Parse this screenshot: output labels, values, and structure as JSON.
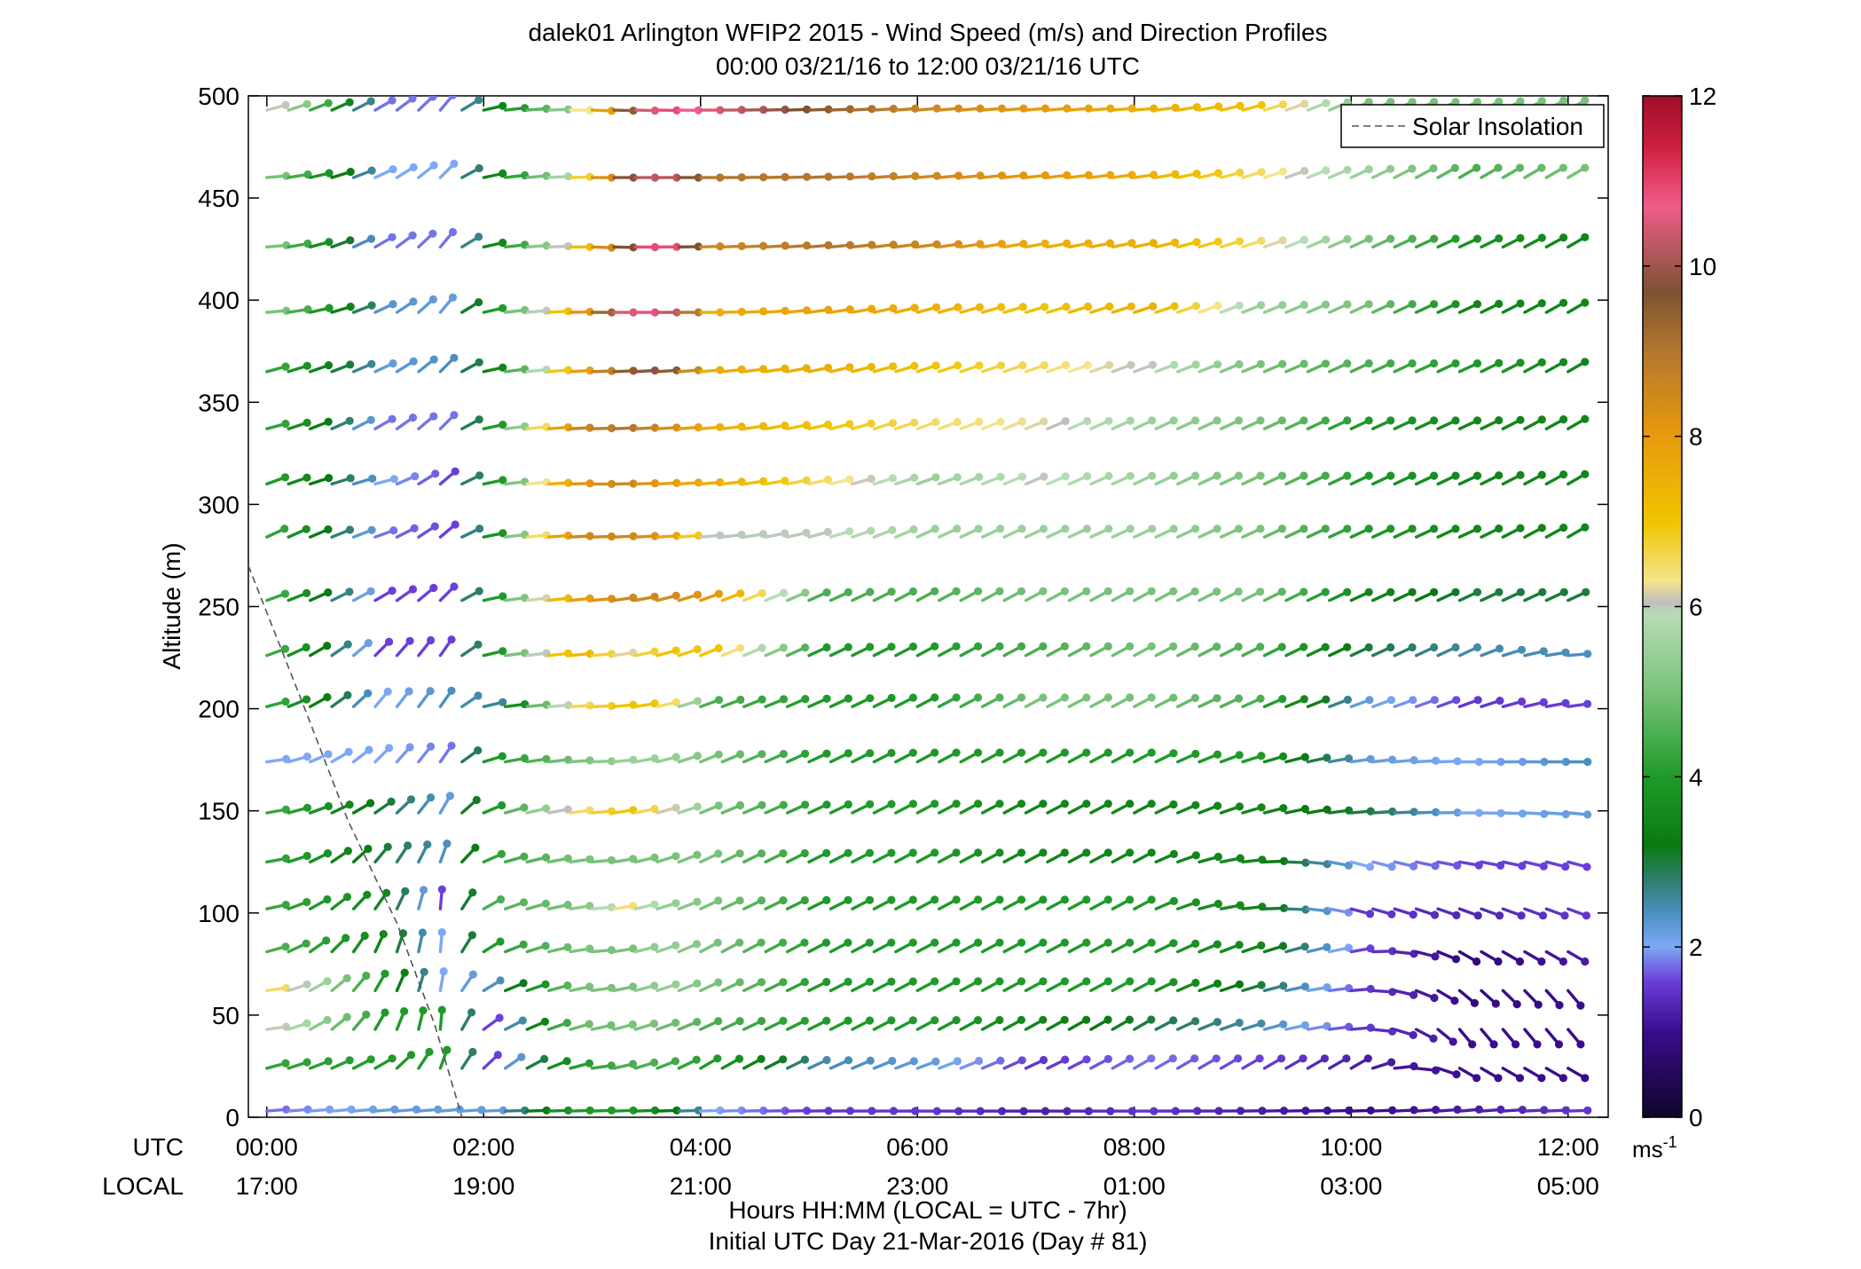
{
  "title": {
    "line1": "dalek01 Arlington WFIP2 2015 - Wind Speed (m/s) and Direction Profiles",
    "line2": "00:00 03/21/16 to 12:00 03/21/16  UTC"
  },
  "axes": {
    "ylabel": "Altitude (m)",
    "xlabel_line1": "Hours HH:MM  (LOCAL = UTC - 7hr)",
    "xlabel_line2": "Initial UTC Day 21-Mar-2016 (Day # 81)",
    "utc_label": "UTC",
    "local_label": "LOCAL"
  },
  "legend": {
    "label": "Solar Insolation",
    "position": "top-right"
  },
  "colorbar": {
    "unit": "ms",
    "unit_exp": "-1",
    "range": [
      0,
      12
    ],
    "ticks": [
      "0",
      "2",
      "4",
      "6",
      "8",
      "10",
      "12"
    ],
    "stops": [
      {
        "v": 0,
        "c": "#0d0628"
      },
      {
        "v": 1,
        "c": "#3a0c8c"
      },
      {
        "v": 1.6,
        "c": "#6a3fd8"
      },
      {
        "v": 2,
        "c": "#7ea8f5"
      },
      {
        "v": 2.4,
        "c": "#4b8fc0"
      },
      {
        "v": 2.8,
        "c": "#2e7d6a"
      },
      {
        "v": 3.2,
        "c": "#0a7a12"
      },
      {
        "v": 4,
        "c": "#1f9a2a"
      },
      {
        "v": 5,
        "c": "#79c27a"
      },
      {
        "v": 5.9,
        "c": "#b7dcb5"
      },
      {
        "v": 6.05,
        "c": "#bfbfbf"
      },
      {
        "v": 6.3,
        "c": "#f4e48c"
      },
      {
        "v": 7,
        "c": "#f0c400"
      },
      {
        "v": 8,
        "c": "#e89a0e"
      },
      {
        "v": 9,
        "c": "#b3772e"
      },
      {
        "v": 9.7,
        "c": "#7d5233"
      },
      {
        "v": 10.7,
        "c": "#f05c8a"
      },
      {
        "v": 11.4,
        "c": "#cf1f3f"
      },
      {
        "v": 12,
        "c": "#9e0f2a"
      }
    ]
  },
  "chart_data": {
    "type": "wind-barb-profile",
    "xlim": [
      -0.17,
      12.37
    ],
    "ylim": [
      0,
      500
    ],
    "x_ticks": [
      0,
      2,
      4,
      6,
      8,
      10,
      12
    ],
    "utc_tick_labels": [
      "00:00",
      "02:00",
      "04:00",
      "06:00",
      "08:00",
      "10:00",
      "12:00"
    ],
    "local_tick_labels": [
      "17:00",
      "19:00",
      "21:00",
      "23:00",
      "01:00",
      "03:00",
      "05:00"
    ],
    "y_ticks": [
      0,
      50,
      100,
      150,
      200,
      250,
      300,
      350,
      400,
      450,
      500
    ],
    "y_tick_labels": [
      "0",
      "50",
      "100",
      "150",
      "200",
      "250",
      "300",
      "350",
      "400",
      "450",
      "500"
    ],
    "time_step_hours": 0.2,
    "altitudes": [
      3,
      24,
      43,
      62,
      81,
      102,
      125,
      149,
      174,
      201,
      226,
      253,
      284,
      310,
      337,
      365,
      394,
      426,
      460,
      493
    ],
    "solar_insolation": {
      "x": [
        -0.17,
        0.35,
        0.75,
        1.2,
        1.55,
        1.8
      ],
      "y": [
        270,
        200,
        145,
        95,
        45,
        0
      ]
    },
    "speed_keyframes": [
      {
        "t": 0,
        "s": [
          1.8,
          4.2,
          6.1,
          6.5,
          4.5,
          4.3,
          4.2,
          4.3,
          2.0,
          4.2,
          4.3,
          4.3,
          4.2,
          4.0,
          4.2,
          4.2,
          5.0,
          5.0,
          5.0,
          6.1
        ]
      },
      {
        "t": 1,
        "s": [
          2.2,
          4.0,
          4.0,
          4.0,
          3.5,
          3.5,
          3.0,
          3.0,
          2.0,
          2.0,
          1.6,
          1.6,
          1.8,
          2.0,
          1.8,
          2.2,
          2.3,
          1.8,
          2.0,
          1.8
        ]
      },
      {
        "t": 1.6,
        "s": [
          2.2,
          4.0,
          4.0,
          2.0,
          2.0,
          1.6,
          2.4,
          2.2,
          1.8,
          2.4,
          1.6,
          1.6,
          1.6,
          1.6,
          1.8,
          2.4,
          2.2,
          1.8,
          2.0,
          1.8
        ]
      },
      {
        "t": 2,
        "s": [
          2.2,
          1.6,
          1.6,
          2.4,
          4.0,
          4.5,
          4.2,
          4.0,
          4.0,
          2.6,
          4.0,
          4.0,
          3.8,
          4.0,
          4.0,
          3.5,
          4.0,
          3.5,
          3.5,
          3.5
        ]
      },
      {
        "t": 2.7,
        "s": [
          4.0,
          4.0,
          4.8,
          5.0,
          5.0,
          5.0,
          5.0,
          6.4,
          5.0,
          6.5,
          7.5,
          7.8,
          8.5,
          8.0,
          8.5,
          7.5,
          7.5,
          6.5,
          6.0,
          5.5
        ]
      },
      {
        "t": 3.2,
        "s": [
          4.0,
          4.5,
          5.0,
          5.0,
          5.0,
          6.4,
          5.0,
          7.0,
          5.5,
          7.0,
          6.2,
          8.5,
          8.5,
          8.5,
          9.0,
          9.5,
          10.5,
          9.7,
          9.8,
          9.5
        ]
      },
      {
        "t": 3.5,
        "s": [
          3.5,
          4.5,
          5.0,
          5.5,
          5.5,
          5.5,
          5.0,
          6.4,
          5.5,
          7.0,
          7.0,
          8.5,
          8.2,
          8.0,
          8.5,
          10.0,
          11.0,
          11.5,
          10.5,
          11.0
        ]
      },
      {
        "t": 4,
        "s": [
          2.0,
          4.0,
          4.5,
          5.0,
          5.0,
          5.0,
          5.0,
          5.0,
          5.0,
          4.5,
          7.0,
          8.0,
          6.0,
          7.5,
          7.5,
          7.5,
          7.5,
          8.5,
          9.0,
          10.5
        ]
      },
      {
        "t": 5,
        "s": [
          1.5,
          2.5,
          4.0,
          4.0,
          4.0,
          4.0,
          4.0,
          4.0,
          4.0,
          4.0,
          4.0,
          4.5,
          6.0,
          6.5,
          7.0,
          7.5,
          7.8,
          9.0,
          9.0,
          9.5
        ]
      },
      {
        "t": 6,
        "s": [
          1.5,
          2.2,
          4.0,
          4.0,
          4.0,
          4.0,
          4.0,
          4.0,
          4.0,
          4.0,
          4.0,
          4.5,
          5.5,
          5.5,
          6.5,
          7.0,
          7.5,
          8.5,
          8.5,
          8.5
        ]
      },
      {
        "t": 7,
        "s": [
          1.2,
          1.5,
          3.5,
          4.0,
          4.0,
          4.0,
          3.5,
          3.5,
          4.0,
          5.0,
          4.5,
          5.0,
          5.5,
          6.0,
          6.2,
          6.5,
          7.0,
          7.5,
          8.0,
          8.0
        ]
      },
      {
        "t": 8,
        "s": [
          1.5,
          1.8,
          3.0,
          4.0,
          4.0,
          4.0,
          3.5,
          3.5,
          4.0,
          5.0,
          5.0,
          5.0,
          5.5,
          5.5,
          5.5,
          6.0,
          7.5,
          7.5,
          7.5,
          7.5
        ]
      },
      {
        "t": 9,
        "s": [
          1.2,
          1.6,
          2.5,
          3.0,
          3.5,
          3.5,
          3.5,
          3.5,
          4.0,
          4.5,
          4.5,
          5.0,
          5.0,
          5.0,
          5.0,
          5.0,
          5.5,
          6.5,
          6.5,
          7.0
        ]
      },
      {
        "t": 10,
        "s": [
          1.0,
          1.2,
          1.5,
          1.5,
          1.6,
          1.5,
          2.0,
          3.0,
          2.2,
          2.2,
          3.0,
          3.5,
          4.0,
          4.0,
          4.0,
          4.5,
          5.0,
          5.0,
          5.5,
          5.0
        ]
      },
      {
        "t": 11,
        "s": [
          1.2,
          1.0,
          1.0,
          0.9,
          0.8,
          1.3,
          1.6,
          2.0,
          2.0,
          1.5,
          2.5,
          3.0,
          3.5,
          3.5,
          3.5,
          4.0,
          3.5,
          3.8,
          4.5,
          5.0
        ]
      },
      {
        "t": 12,
        "s": [
          1.5,
          1.0,
          1.0,
          1.0,
          1.2,
          1.5,
          1.6,
          2.2,
          2.4,
          1.6,
          2.4,
          3.0,
          3.5,
          3.5,
          3.5,
          3.5,
          3.5,
          3.5,
          5.0,
          5.0
        ]
      }
    ],
    "direction_keyframes": [
      {
        "t": 0,
        "d": [
          265,
          255,
          262,
          262,
          255,
          258,
          260,
          260,
          262,
          255,
          250,
          250,
          245,
          250,
          255,
          255,
          265,
          265,
          265,
          255
        ]
      },
      {
        "t": 1,
        "d": [
          265,
          240,
          210,
          210,
          205,
          215,
          220,
          235,
          225,
          220,
          225,
          240,
          250,
          255,
          240,
          245,
          245,
          240,
          245,
          240
        ]
      },
      {
        "t": 1.6,
        "d": [
          265,
          200,
          185,
          190,
          185,
          185,
          200,
          210,
          215,
          215,
          215,
          225,
          230,
          230,
          225,
          225,
          220,
          220,
          225,
          220
        ]
      },
      {
        "t": 2.05,
        "d": [
          268,
          230,
          240,
          245,
          245,
          248,
          252,
          252,
          258,
          262,
          262,
          262,
          262,
          262,
          262,
          262,
          262,
          262,
          262,
          262
        ]
      },
      {
        "t": 3,
        "d": [
          268,
          262,
          258,
          262,
          265,
          265,
          265,
          265,
          268,
          268,
          265,
          265,
          268,
          270,
          268,
          268,
          270,
          272,
          270,
          272
        ]
      },
      {
        "t": 4,
        "d": [
          268,
          240,
          245,
          245,
          242,
          245,
          245,
          248,
          248,
          250,
          248,
          250,
          265,
          265,
          265,
          265,
          270,
          268,
          270,
          270
        ]
      },
      {
        "t": 6,
        "d": [
          270,
          250,
          242,
          242,
          242,
          242,
          242,
          242,
          242,
          242,
          242,
          242,
          245,
          250,
          250,
          252,
          255,
          262,
          265,
          265
        ]
      },
      {
        "t": 8,
        "d": [
          270,
          240,
          240,
          242,
          242,
          242,
          242,
          242,
          242,
          242,
          242,
          242,
          245,
          245,
          245,
          250,
          252,
          258,
          262,
          265
        ]
      },
      {
        "t": 10,
        "d": [
          268,
          240,
          265,
          265,
          260,
          285,
          285,
          265,
          262,
          250,
          245,
          245,
          245,
          245,
          245,
          245,
          245,
          245,
          245,
          245
        ]
      },
      {
        "t": 11,
        "d": [
          265,
          300,
          320,
          310,
          300,
          290,
          280,
          270,
          270,
          250,
          245,
          245,
          245,
          245,
          245,
          245,
          245,
          245,
          240,
          245
        ]
      },
      {
        "t": 12,
        "d": [
          268,
          300,
          320,
          320,
          300,
          290,
          285,
          275,
          270,
          262,
          265,
          245,
          240,
          240,
          240,
          240,
          240,
          240,
          240,
          240
        ]
      }
    ]
  }
}
